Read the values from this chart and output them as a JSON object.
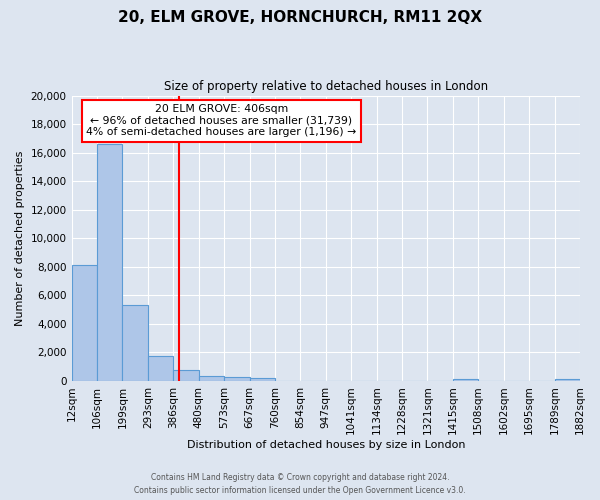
{
  "title": "20, ELM GROVE, HORNCHURCH, RM11 2QX",
  "subtitle": "Size of property relative to detached houses in London",
  "xlabel": "Distribution of detached houses by size in London",
  "ylabel": "Number of detached properties",
  "bin_labels": [
    "12sqm",
    "106sqm",
    "199sqm",
    "293sqm",
    "386sqm",
    "480sqm",
    "573sqm",
    "667sqm",
    "760sqm",
    "854sqm",
    "947sqm",
    "1041sqm",
    "1134sqm",
    "1228sqm",
    "1321sqm",
    "1415sqm",
    "1508sqm",
    "1602sqm",
    "1695sqm",
    "1789sqm",
    "1882sqm"
  ],
  "bar_heights": [
    8100,
    16600,
    5300,
    1750,
    750,
    350,
    250,
    200,
    0,
    0,
    0,
    0,
    0,
    0,
    0,
    150,
    0,
    0,
    0,
    150
  ],
  "bar_color": "#aec6e8",
  "bar_edgecolor": "#5b9bd5",
  "vline_pos": 4.21,
  "vline_color": "red",
  "annotation_title": "20 ELM GROVE: 406sqm",
  "annotation_line1": "← 96% of detached houses are smaller (31,739)",
  "annotation_line2": "4% of semi-detached houses are larger (1,196) →",
  "annotation_box_facecolor": "white",
  "annotation_box_edgecolor": "red",
  "ylim": [
    0,
    20000
  ],
  "yticks": [
    0,
    2000,
    4000,
    6000,
    8000,
    10000,
    12000,
    14000,
    16000,
    18000,
    20000
  ],
  "footer1": "Contains HM Land Registry data © Crown copyright and database right 2024.",
  "footer2": "Contains public sector information licensed under the Open Government Licence v3.0.",
  "background_color": "#dde5f0",
  "plot_background": "#dde5f0"
}
